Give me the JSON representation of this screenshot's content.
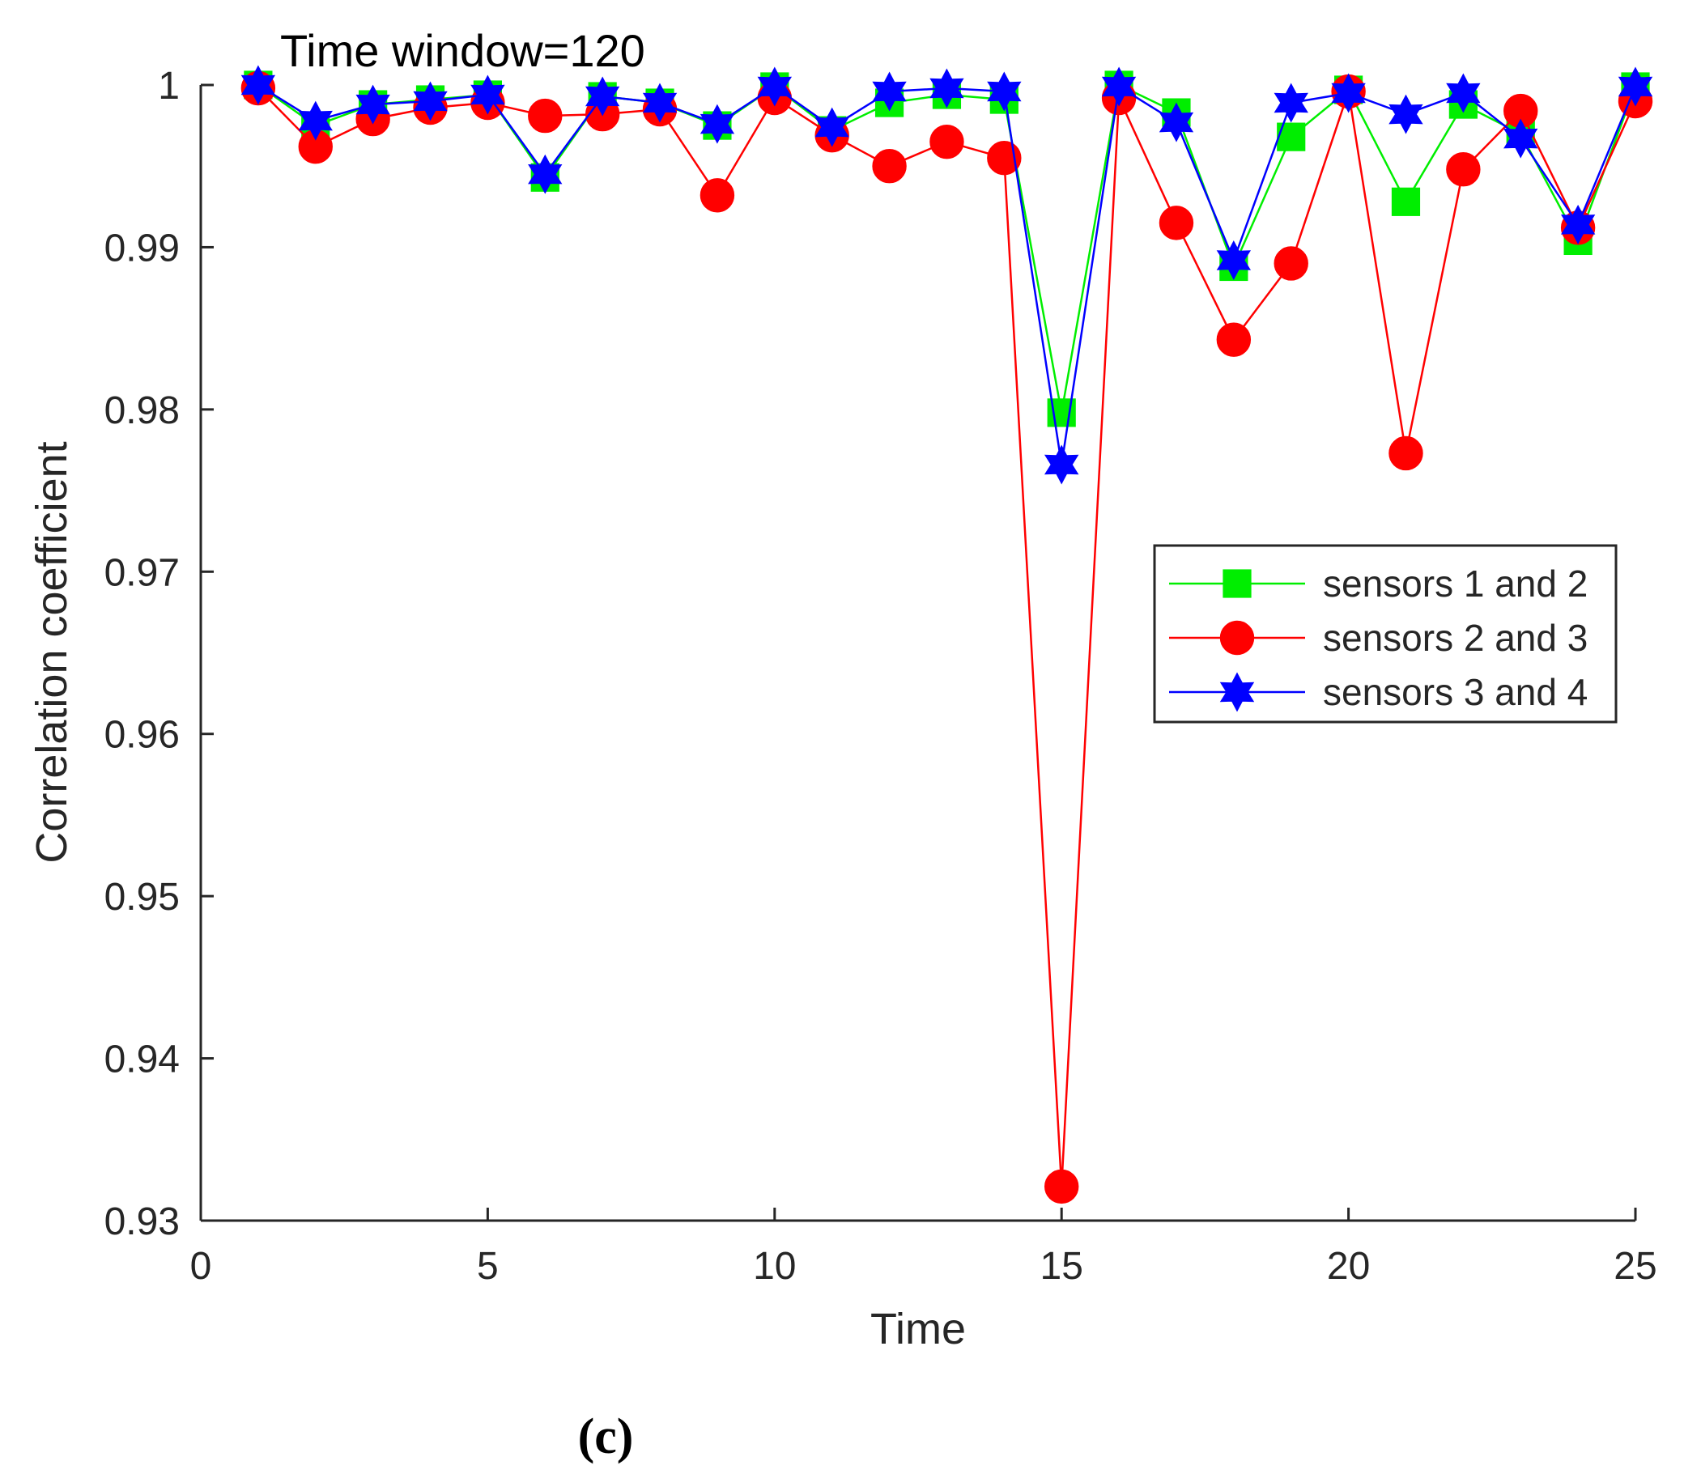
{
  "chart_data": {
    "type": "line",
    "title": "Time window=120",
    "xlabel": "Time",
    "ylabel": "Correlation coefficient",
    "xlim": [
      0,
      25
    ],
    "ylim": [
      0.93,
      1.0
    ],
    "xticks": [
      "0",
      "5",
      "10",
      "15",
      "20",
      "25"
    ],
    "yticks": [
      "0.93",
      "0.94",
      "0.95",
      "0.96",
      "0.97",
      "0.98",
      "0.99",
      "1"
    ],
    "grid": false,
    "legend_position": "right",
    "x": [
      1,
      2,
      3,
      4,
      5,
      6,
      7,
      8,
      9,
      10,
      11,
      12,
      13,
      14,
      15,
      16,
      17,
      18,
      19,
      20,
      21,
      22,
      23,
      24,
      25
    ],
    "series": [
      {
        "name": "sensors 1 and 2",
        "color": "#00ee00",
        "marker": "square",
        "values": [
          1.0,
          0.9975,
          0.9988,
          0.9991,
          0.9994,
          0.9943,
          0.9993,
          0.9989,
          0.9975,
          0.9999,
          0.9972,
          0.9989,
          0.9994,
          0.9991,
          0.9798,
          1.0,
          0.9983,
          0.9888,
          0.9968,
          0.9997,
          0.9928,
          0.9988,
          0.997,
          0.9904,
          0.9999
        ]
      },
      {
        "name": "sensors 2 and 3",
        "color": "#ff0000",
        "marker": "circle",
        "values": [
          0.9998,
          0.9962,
          0.9979,
          0.9986,
          0.9989,
          0.9981,
          0.9982,
          0.9985,
          0.9932,
          0.9992,
          0.9969,
          0.995,
          0.9965,
          0.9955,
          0.9321,
          0.9992,
          0.9915,
          0.9843,
          0.989,
          0.9996,
          0.9773,
          0.9948,
          0.9984,
          0.9912,
          0.999
        ]
      },
      {
        "name": "sensors 3 and 4",
        "color": "#0000ff",
        "marker": "star",
        "values": [
          1.0,
          0.9978,
          0.9988,
          0.999,
          0.9994,
          0.9945,
          0.9993,
          0.9989,
          0.9976,
          0.9999,
          0.9974,
          0.9996,
          0.9998,
          0.9996,
          0.9766,
          0.9999,
          0.9977,
          0.9892,
          0.9989,
          0.9995,
          0.9982,
          0.9995,
          0.9967,
          0.9914,
          0.9999
        ]
      }
    ],
    "caption": "(c)"
  }
}
